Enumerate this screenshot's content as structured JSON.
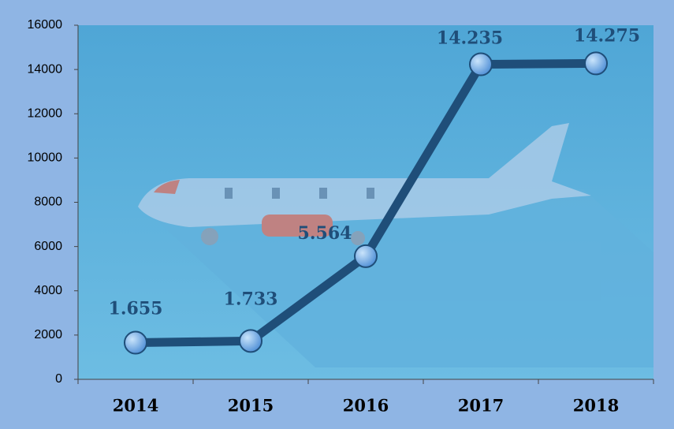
{
  "chart_data": {
    "type": "line",
    "categories": [
      "2014",
      "2015",
      "2016",
      "2017",
      "2018"
    ],
    "series": [
      {
        "name": null,
        "color": "#1f4e79",
        "values": [
          1655,
          1733,
          5564,
          14235,
          14275
        ],
        "value_labels": [
          "1.655",
          "1.733",
          "5.564",
          "14.235",
          "14.275"
        ]
      }
    ],
    "ylim": [
      0,
      16000
    ],
    "yticks": [
      0,
      2000,
      4000,
      6000,
      8000,
      10000,
      12000,
      14000,
      16000
    ]
  }
}
